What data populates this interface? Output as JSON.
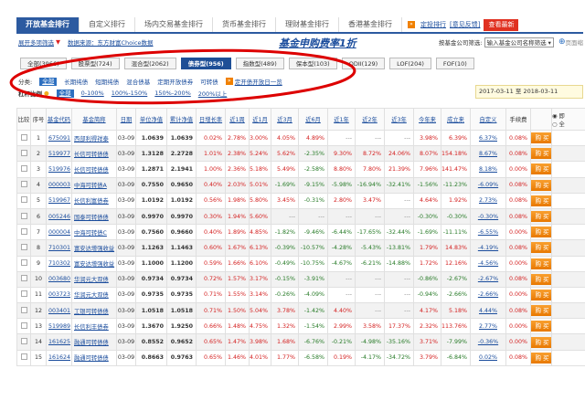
{
  "tabs": [
    "开放基金排行",
    "自定义排行",
    "场内交易基金排行",
    "货币基金排行",
    "理财基金排行",
    "香港基金排行"
  ],
  "header_links": {
    "custom_rank": "定投排行",
    "feedback": "[意见反馈]",
    "latest": "查看最新"
  },
  "sub": {
    "filter_toggle": "展开多项筛选",
    "source": "数据来源：东方财富Choice数据",
    "promo": "基金申购费率1折",
    "company_label": "按基金公司筛选:",
    "company_select": "输入基金公司名称筛选",
    "page_zoom": "页面缩"
  },
  "filters": [
    {
      "label": "全部(3966)",
      "active": false
    },
    {
      "label": "股票型(724)",
      "active": false
    },
    {
      "label": "混合型(2062)",
      "active": false
    },
    {
      "label": "债券型(956)",
      "active": true
    },
    {
      "label": "指数型(489)",
      "active": false
    },
    {
      "label": "保本型(103)",
      "active": false
    },
    {
      "label": "QDII(129)",
      "active": false
    },
    {
      "label": "LOF(204)",
      "active": false
    },
    {
      "label": "FOF(10)",
      "active": false
    }
  ],
  "category": {
    "label": "分类:",
    "items": [
      "全部",
      "长期纯债",
      "短期纯债",
      "混合债基",
      "定期开放债券",
      "可转债"
    ],
    "open_link": "定开债开放日一览"
  },
  "leverage": {
    "label": "杠杆比例",
    "items": [
      "全部",
      "0-100%",
      "100%-150%",
      "150%-200%",
      "200%以上"
    ]
  },
  "date_range": {
    "from": "2017-03-11",
    "sep": "至",
    "to": "2018-03-11"
  },
  "columns": [
    "比较",
    "序号",
    "基金代码",
    "基金简称",
    "日期",
    "单位净值",
    "累计净值",
    "日增长率",
    "近1周",
    "近1月",
    "近3月",
    "近6月",
    "近1年",
    "近2年",
    "近3年",
    "今年来",
    "成立来",
    "自定义",
    "手续费"
  ],
  "radio": [
    "即",
    "全"
  ],
  "buy_label": "购 买",
  "colors": {
    "tab": "#2c5aa0",
    "positive": "#d42020",
    "negative": "#267a26",
    "buy": "#f08000",
    "annotation": "#dd0000"
  },
  "rows": [
    [
      "1",
      "675091",
      "西部利得祥泰",
      "03-09",
      "1.0639",
      "1.0639",
      "0.02%",
      "2.78%",
      "3.00%",
      "4.05%",
      "4.89%",
      "---",
      "---",
      "---",
      "3.98%",
      "6.39%",
      "6.37%",
      "0.08%"
    ],
    [
      "2",
      "519977",
      "长信可转债债",
      "03-09",
      "1.3128",
      "2.2728",
      "1.01%",
      "2.38%",
      "5.24%",
      "5.62%",
      "-2.35%",
      "9.30%",
      "8.72%",
      "24.06%",
      "8.07%",
      "154.18%",
      "8.67%",
      "0.08%"
    ],
    [
      "3",
      "519976",
      "长信可转债债",
      "03-09",
      "1.2871",
      "2.1941",
      "1.00%",
      "2.36%",
      "5.18%",
      "5.49%",
      "-2.58%",
      "8.80%",
      "7.80%",
      "21.39%",
      "7.96%",
      "141.47%",
      "8.18%",
      "0.00%"
    ],
    [
      "4",
      "000003",
      "中海可转债A",
      "03-09",
      "0.7550",
      "0.9650",
      "0.40%",
      "2.03%",
      "5.01%",
      "-1.69%",
      "-9.15%",
      "-5.98%",
      "-16.94%",
      "-32.41%",
      "-1.56%",
      "-11.23%",
      "-6.09%",
      "0.08%"
    ],
    [
      "5",
      "519967",
      "长信利富债券",
      "03-09",
      "1.0192",
      "1.0192",
      "0.56%",
      "1.98%",
      "5.80%",
      "3.45%",
      "-0.31%",
      "2.80%",
      "3.47%",
      "---",
      "4.64%",
      "1.92%",
      "2.73%",
      "0.08%"
    ],
    [
      "6",
      "005246",
      "国泰可转债债",
      "03-09",
      "0.9970",
      "0.9970",
      "0.30%",
      "1.94%",
      "5.60%",
      "---",
      "---",
      "---",
      "---",
      "---",
      "-0.30%",
      "-0.30%",
      "-0.30%",
      "0.08%"
    ],
    [
      "7",
      "000004",
      "中海可转债C",
      "03-09",
      "0.7560",
      "0.9660",
      "0.40%",
      "1.89%",
      "4.85%",
      "-1.82%",
      "-9.46%",
      "-6.44%",
      "-17.65%",
      "-32.44%",
      "-1.69%",
      "-11.11%",
      "-6.55%",
      "0.00%"
    ],
    [
      "8",
      "710301",
      "富安达增强收益",
      "03-09",
      "1.1263",
      "1.1463",
      "0.60%",
      "1.67%",
      "6.13%",
      "-0.39%",
      "-10.57%",
      "-4.28%",
      "-5.43%",
      "-13.81%",
      "1.79%",
      "14.83%",
      "-4.19%",
      "0.08%"
    ],
    [
      "9",
      "710302",
      "富安达增强收益",
      "03-09",
      "1.1000",
      "1.1200",
      "0.59%",
      "1.66%",
      "6.10%",
      "-0.49%",
      "-10.75%",
      "-4.67%",
      "-6.21%",
      "-14.88%",
      "1.72%",
      "12.16%",
      "-4.56%",
      "0.00%"
    ],
    [
      "10",
      "003680",
      "华润元大双债",
      "03-09",
      "0.9734",
      "0.9734",
      "0.72%",
      "1.57%",
      "3.17%",
      "-0.15%",
      "-3.91%",
      "---",
      "---",
      "---",
      "-0.86%",
      "-2.67%",
      "-2.67%",
      "0.08%"
    ],
    [
      "11",
      "003723",
      "华润元大双债",
      "03-09",
      "0.9735",
      "0.9735",
      "0.71%",
      "1.55%",
      "3.14%",
      "-0.26%",
      "-4.09%",
      "---",
      "---",
      "---",
      "-0.94%",
      "-2.66%",
      "-2.66%",
      "0.00%"
    ],
    [
      "12",
      "003401",
      "工银可转债债",
      "03-09",
      "1.0518",
      "1.0518",
      "0.71%",
      "1.50%",
      "5.04%",
      "3.78%",
      "-1.42%",
      "4.40%",
      "---",
      "---",
      "4.17%",
      "5.18%",
      "4.44%",
      "0.08%"
    ],
    [
      "13",
      "519989",
      "长信利丰债券",
      "03-09",
      "1.3670",
      "1.9250",
      "0.66%",
      "1.48%",
      "4.75%",
      "1.32%",
      "-1.54%",
      "2.99%",
      "3.58%",
      "17.37%",
      "2.32%",
      "113.76%",
      "2.77%",
      "0.00%"
    ],
    [
      "14",
      "161625",
      "融通可转债债",
      "03-09",
      "0.8552",
      "0.9652",
      "0.65%",
      "1.47%",
      "3.98%",
      "1.68%",
      "-6.76%",
      "-0.21%",
      "-4.98%",
      "-35.16%",
      "3.71%",
      "-7.99%",
      "-0.36%",
      "0.00%"
    ],
    [
      "15",
      "161624",
      "融通可转债债",
      "03-09",
      "0.8663",
      "0.9763",
      "0.65%",
      "1.46%",
      "4.01%",
      "1.77%",
      "-6.58%",
      "0.19%",
      "-4.17%",
      "-34.72%",
      "3.79%",
      "-6.84%",
      "0.02%",
      "0.08%"
    ]
  ]
}
